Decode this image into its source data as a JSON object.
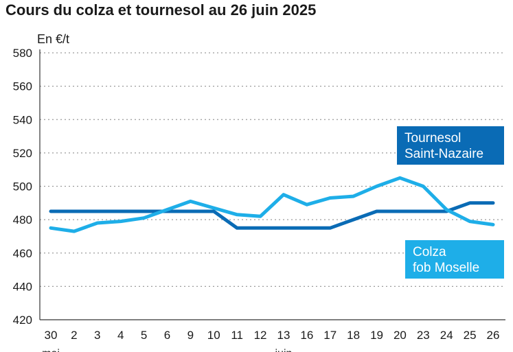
{
  "chart_data": {
    "type": "line",
    "title": "Cours du colza et tournesol au 26 juin 2025",
    "ylabel": "En €/t",
    "ylim": [
      420,
      580
    ],
    "yticks": [
      420,
      440,
      460,
      480,
      500,
      520,
      540,
      560,
      580
    ],
    "categories": [
      "30",
      "2",
      "3",
      "4",
      "5",
      "6",
      "9",
      "10",
      "11",
      "12",
      "13",
      "16",
      "17",
      "18",
      "19",
      "20",
      "23",
      "24",
      "25",
      "26"
    ],
    "months": [
      {
        "label": "mai",
        "index": 0
      },
      {
        "label": "juin",
        "index": 10
      }
    ],
    "grid": true,
    "series": [
      {
        "name": "Tournesol Saint-Nazaire",
        "name_lines": [
          "Tournesol",
          "Saint-Nazaire"
        ],
        "color": "#0a6bb5",
        "values": [
          485,
          485,
          485,
          485,
          485,
          485,
          485,
          485,
          475,
          475,
          475,
          475,
          475,
          480,
          485,
          485,
          485,
          485,
          490,
          490
        ]
      },
      {
        "name": "Colza fob Moselle",
        "name_lines": [
          "Colza",
          "fob Moselle"
        ],
        "color": "#1eaee8",
        "values": [
          475,
          473,
          478,
          479,
          481,
          486,
          491,
          487,
          483,
          482,
          495,
          489,
          493,
          494,
          500,
          505,
          500,
          486,
          479,
          477
        ]
      }
    ]
  }
}
